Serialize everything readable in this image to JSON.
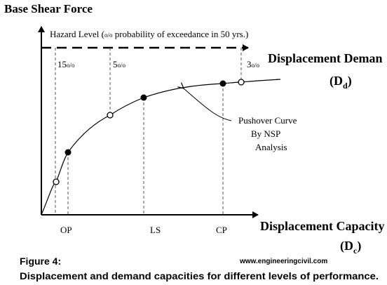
{
  "diagram": {
    "y_axis_label": "Base Shear Force",
    "hazard_label": "Hazard Level (",
    "hazard_label_rest": " probability of exceedance in 50 yrs.)",
    "percent_glyph": "o/o",
    "demand_title": "Displacement Deman",
    "demand_symbol": "(D",
    "demand_subscript": "d",
    "close_paren": ")",
    "capacity_title": "Displacement Capacity",
    "capacity_symbol": "(D",
    "capacity_subscript": "c",
    "demand_levels": [
      {
        "label": "15",
        "probability_percent": 15
      },
      {
        "label": "5",
        "probability_percent": 5
      },
      {
        "label": "3",
        "probability_percent": 3
      }
    ],
    "performance_levels": [
      "OP",
      "LS",
      "CP"
    ],
    "curve_annotation": [
      "Pushover Curve",
      "By NSP",
      "Analysis"
    ]
  },
  "caption": {
    "figure_label": "Figure 4:",
    "website": "www.engineeringcivil.com",
    "text": "Displacement and demand  capacities for different levels of performance."
  },
  "colors": {
    "ink": "#000000",
    "guide_lines": "#555555",
    "background": "#ffffff"
  }
}
